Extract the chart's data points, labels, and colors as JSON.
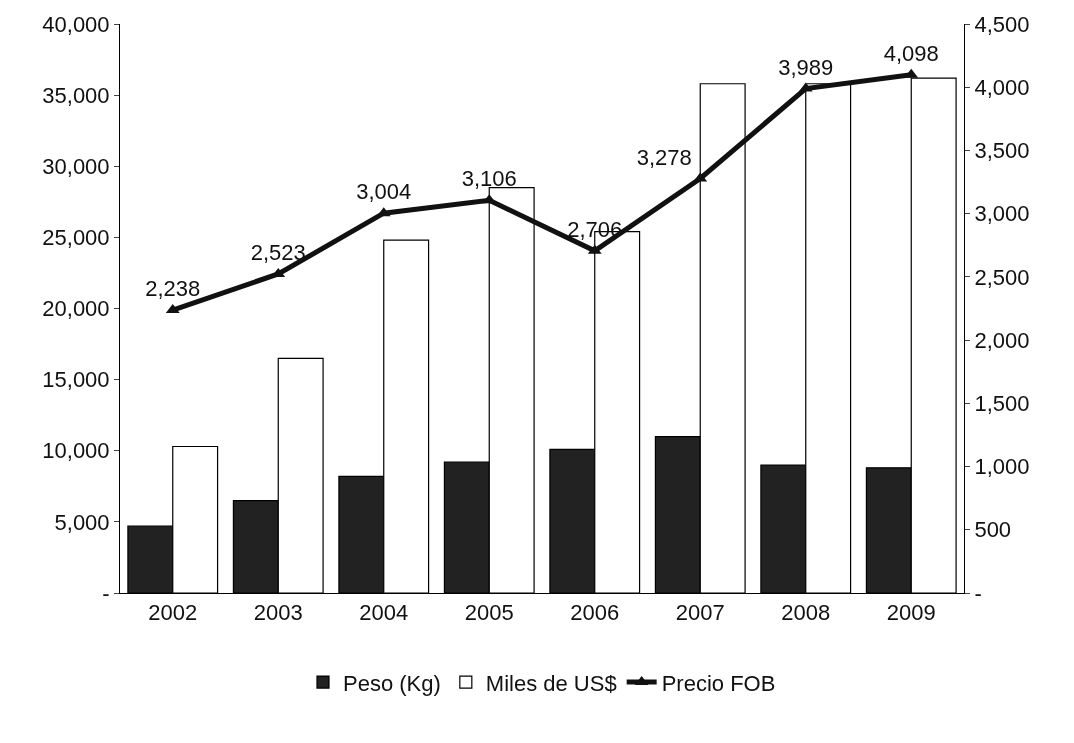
{
  "chart_data": {
    "type": "bar",
    "categories": [
      "2002",
      "2003",
      "2004",
      "2005",
      "2006",
      "2007",
      "2008",
      "2009"
    ],
    "series": [
      {
        "name": "Peso (Kg)",
        "color": "#222222",
        "values": [
          4700,
          6500,
          8200,
          9200,
          10100,
          11000,
          9000,
          8800
        ]
      },
      {
        "name": "Miles de US$",
        "color": "#ffffff",
        "values": [
          10300,
          16500,
          24800,
          28500,
          25400,
          35800,
          35800,
          36200
        ]
      },
      {
        "name": "Precio FOB",
        "type": "line",
        "axis": "y2",
        "color": "#111111",
        "marker": "triangle",
        "values": [
          2238,
          2523,
          3004,
          3106,
          2706,
          3278,
          3989,
          4098
        ],
        "value_labels": [
          "2,238",
          "2,523",
          "3,004",
          "3,106",
          "2,706",
          "3,278",
          "3,989",
          "4,098"
        ]
      }
    ],
    "ylim": [
      0,
      40000
    ],
    "yticks": [
      {
        "value": 0,
        "label": "-"
      },
      {
        "value": 5000,
        "label": "5,000"
      },
      {
        "value": 10000,
        "label": "10,000"
      },
      {
        "value": 15000,
        "label": "15,000"
      },
      {
        "value": 20000,
        "label": "20,000"
      },
      {
        "value": 25000,
        "label": "25,000"
      },
      {
        "value": 30000,
        "label": "30,000"
      },
      {
        "value": 35000,
        "label": "35,000"
      },
      {
        "value": 40000,
        "label": "40,000"
      }
    ],
    "y2lim": [
      0,
      4500
    ],
    "y2ticks": [
      {
        "value": 0,
        "label": "-"
      },
      500,
      {
        "value": 1000,
        "label": "1,000"
      },
      {
        "value": 1500,
        "label": "1,500"
      },
      {
        "value": 2000,
        "label": "2,000"
      },
      {
        "value": 2500,
        "label": "2,500"
      },
      {
        "value": 3000,
        "label": "3,000"
      },
      {
        "value": 3500,
        "label": "3,500"
      },
      {
        "value": 4000,
        "label": "4,000"
      },
      {
        "value": 4500,
        "label": "4,500"
      }
    ],
    "grid": false,
    "legend": "bottom"
  }
}
